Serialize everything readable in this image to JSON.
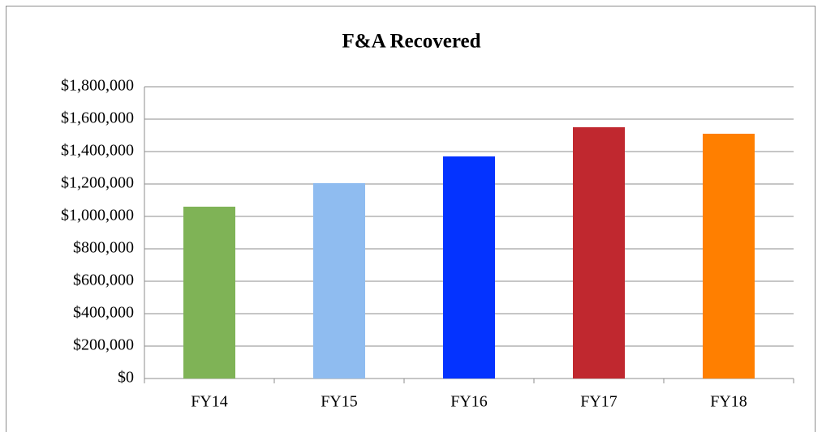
{
  "chart_data": {
    "type": "bar",
    "title": "F&A Recovered",
    "categories": [
      "FY14",
      "FY15",
      "FY16",
      "FY17",
      "FY18"
    ],
    "values": [
      1060000,
      1205000,
      1370000,
      1550000,
      1510000
    ],
    "colors": [
      "#7fb356",
      "#8fbcf0",
      "#0433ff",
      "#c0282f",
      "#ff7f00"
    ],
    "ylim": [
      0,
      1800000
    ],
    "yticks": [
      {
        "value": 0,
        "label": "$0"
      },
      {
        "value": 200000,
        "label": "$200,000"
      },
      {
        "value": 400000,
        "label": "$400,000"
      },
      {
        "value": 600000,
        "label": "$600,000"
      },
      {
        "value": 800000,
        "label": "$800,000"
      },
      {
        "value": 1000000,
        "label": "$1,000,000"
      },
      {
        "value": 1200000,
        "label": "$1,200,000"
      },
      {
        "value": 1400000,
        "label": "$1,400,000"
      },
      {
        "value": 1600000,
        "label": "$1,600,000"
      },
      {
        "value": 1800000,
        "label": "$1,800,000"
      }
    ],
    "grid": true
  }
}
